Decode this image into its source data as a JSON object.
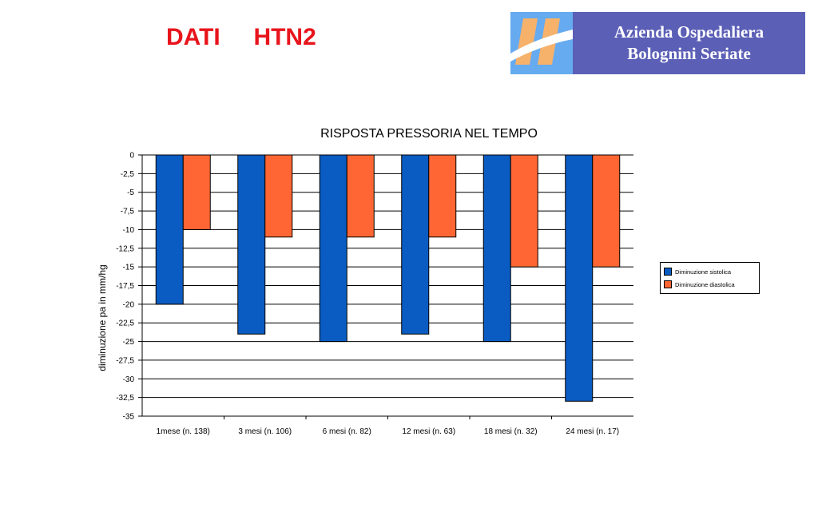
{
  "slide": {
    "title": "DATI     HTN2",
    "logo_line1": "Azienda Ospedaliera",
    "logo_line2": "Bolognini Seriate"
  },
  "colors": {
    "title": "#e8141c",
    "logo_bg": "#5b5fb6",
    "logo_mark": "#66aaf0"
  },
  "chart_data": {
    "type": "bar",
    "title": "RISPOSTA PRESSORIA NEL TEMPO",
    "xlabel": "",
    "ylabel": "diminuzione pa in mm/hg",
    "categories": [
      "1mese (n. 138)",
      "3 mesi (n. 106)",
      "6 mesi (n. 82)",
      "12 mesi (n. 63)",
      "18 mesi (n. 32)",
      "24 mesi (n. 17)"
    ],
    "series": [
      {
        "name": "Diminuzione sistolica",
        "color": "#0a5cc2",
        "values": [
          -20,
          -24,
          -25,
          -24,
          -25,
          -33
        ]
      },
      {
        "name": "Diminuzione diastolica",
        "color": "#ff6633",
        "values": [
          -10,
          -11,
          -11,
          -11,
          -15,
          -15
        ]
      }
    ],
    "ylim": [
      -35,
      0
    ],
    "yticks": [
      "0",
      "-2,5",
      "-5",
      "-7,5",
      "-10",
      "-12,5",
      "-15",
      "-17,5",
      "-20",
      "-22,5",
      "-25",
      "-27,5",
      "-30",
      "-32,5",
      "-35"
    ],
    "grid": true,
    "legend_position": "right"
  }
}
